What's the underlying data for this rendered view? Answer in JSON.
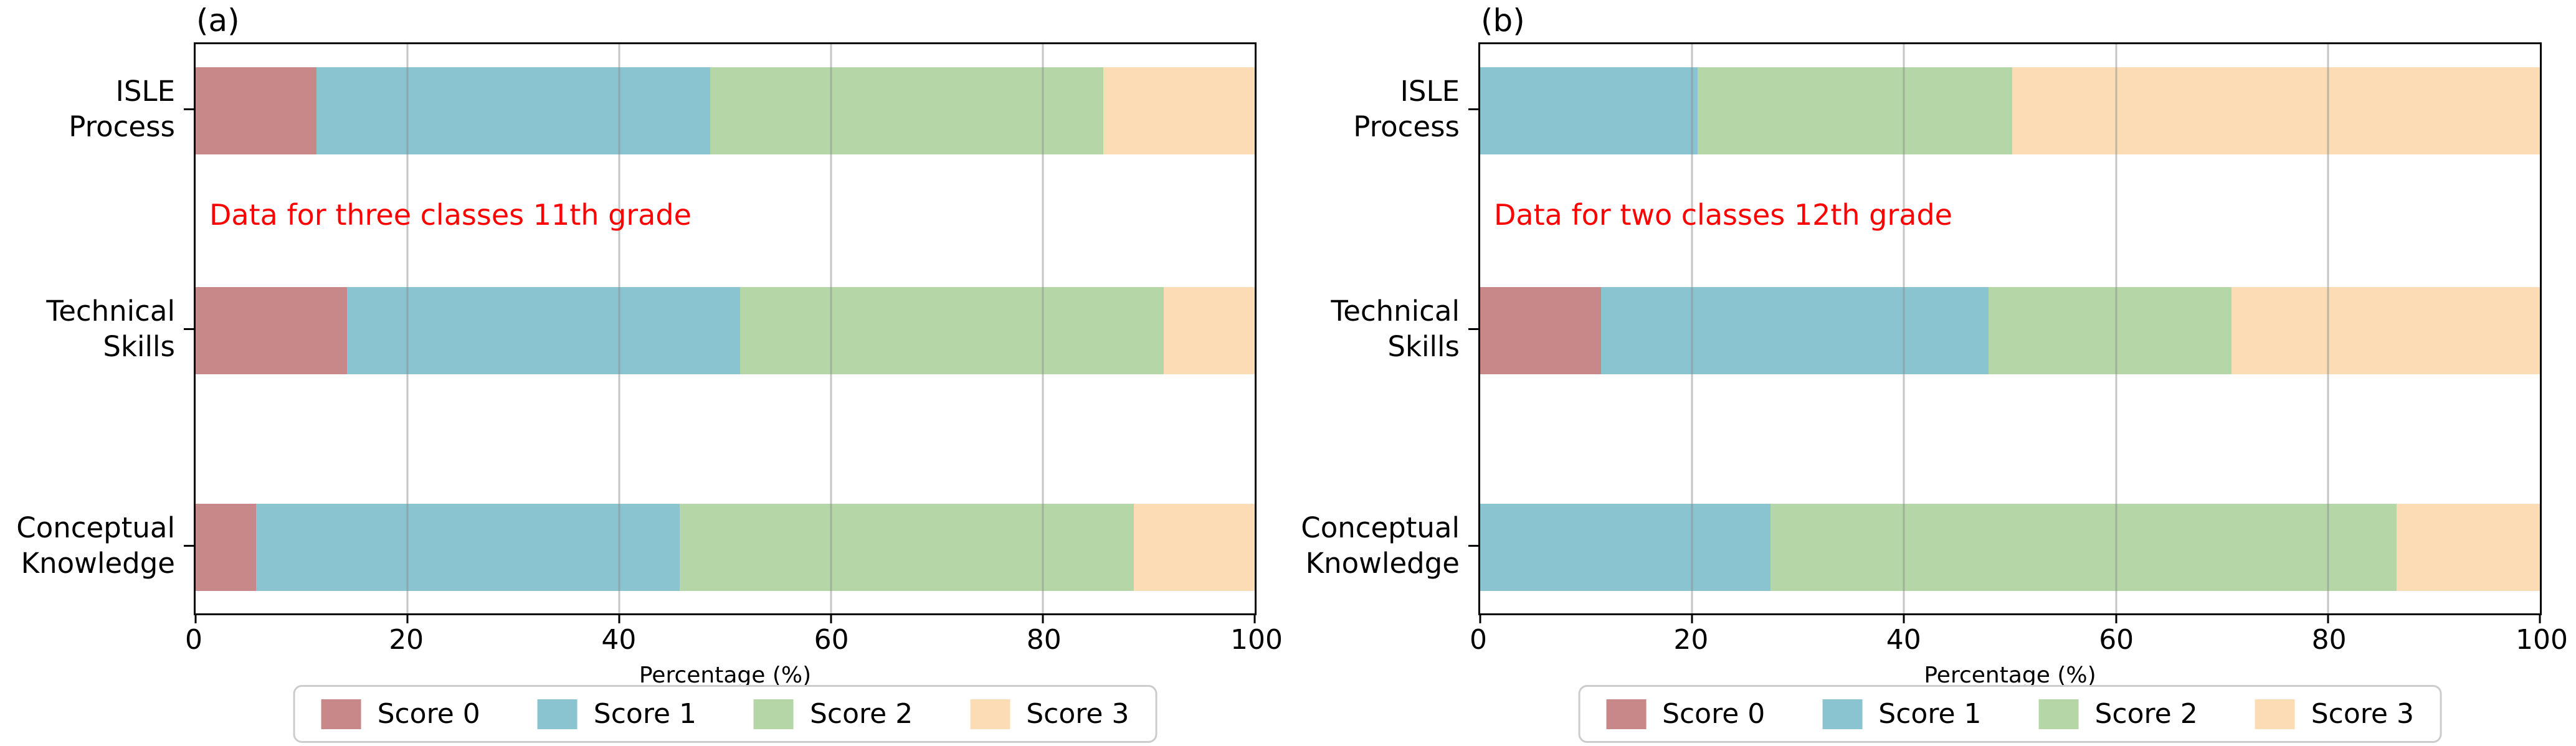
{
  "figure": {
    "background": "#ffffff",
    "text_color": "#000000",
    "grid_color": "#8c8c8c",
    "legend_border_color": "#cccccc"
  },
  "chart_data": [
    {
      "type": "bar",
      "orientation": "horizontal",
      "stacked": true,
      "panel_label": "(a)",
      "annotation": {
        "text": "Data for three classes 11th grade",
        "color": "#ff0000"
      },
      "categories": [
        "ISLE\nProcess",
        "Technical\nSkills",
        "Conceptual\nKnowledge"
      ],
      "series": [
        {
          "name": "Score 0",
          "color": "#c88889",
          "values": [
            11.4,
            14.3,
            5.7
          ]
        },
        {
          "name": "Score 1",
          "color": "#8ac4d0",
          "values": [
            37.2,
            37.1,
            40.0
          ]
        },
        {
          "name": "Score 2",
          "color": "#b5d6a7",
          "values": [
            37.1,
            40.0,
            42.9
          ]
        },
        {
          "name": "Score 3",
          "color": "#fbdcb5",
          "values": [
            14.3,
            8.6,
            11.4
          ]
        }
      ],
      "xlabel": "Percentage (%)",
      "xlim": [
        0,
        100
      ],
      "xticks": [
        0,
        20,
        40,
        60,
        80,
        100
      ],
      "grid": true,
      "legend": {
        "labels": [
          "Score 0",
          "Score 1",
          "Score 2",
          "Score 3"
        ],
        "position": "lower center"
      }
    },
    {
      "type": "bar",
      "orientation": "horizontal",
      "stacked": true,
      "panel_label": "(b)",
      "annotation": {
        "text": "Data for two classes 12th grade",
        "color": "#ff0000"
      },
      "categories": [
        "ISLE\nProcess",
        "Technical\nSkills",
        "Conceptual\nKnowledge"
      ],
      "series": [
        {
          "name": "Score 0",
          "color": "#c88889",
          "values": [
            0,
            11.4,
            0
          ]
        },
        {
          "name": "Score 1",
          "color": "#8ac4d0",
          "values": [
            20.5,
            36.6,
            27.4
          ]
        },
        {
          "name": "Score 2",
          "color": "#b5d6a7",
          "values": [
            29.7,
            22.9,
            59.1
          ]
        },
        {
          "name": "Score 3",
          "color": "#fbdcb5",
          "values": [
            49.8,
            29.1,
            13.5
          ]
        }
      ],
      "xlabel": "Percentage (%)",
      "xlim": [
        0,
        100
      ],
      "xticks": [
        0,
        20,
        40,
        60,
        80,
        100
      ],
      "grid": true,
      "legend": {
        "labels": [
          "Score 0",
          "Score 1",
          "Score 2",
          "Score 3"
        ],
        "position": "lower center"
      }
    }
  ]
}
